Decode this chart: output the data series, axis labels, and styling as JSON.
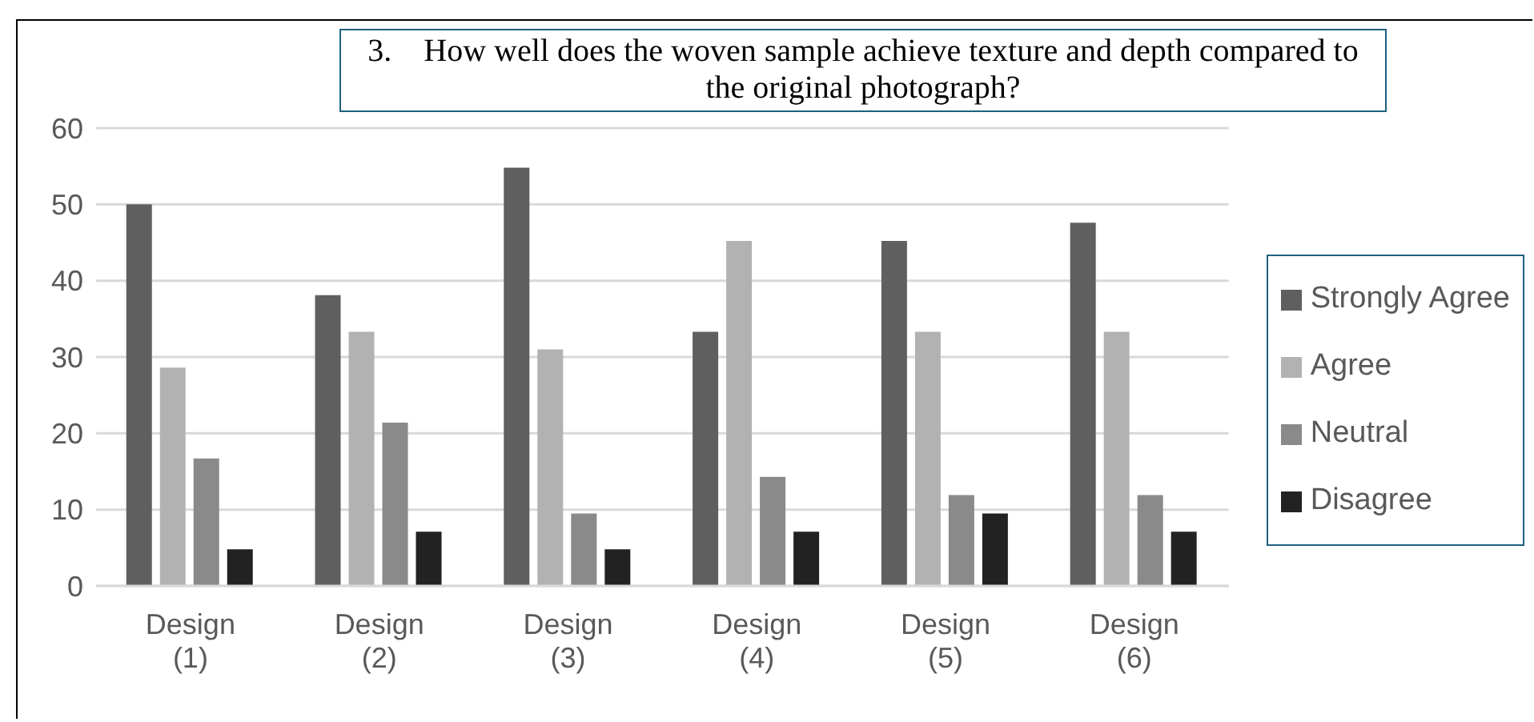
{
  "chart_data": {
    "type": "bar",
    "title": "3.    How well does the woven sample achieve texture and depth compared to the original photograph?",
    "categories": [
      "Design (1)",
      "Design (2)",
      "Design (3)",
      "Design (4)",
      "Design (5)",
      "Design (6)"
    ],
    "series": [
      {
        "name": "Strongly Agree",
        "color": "#5f5f5f",
        "values": [
          50,
          38.1,
          54.8,
          33.3,
          45.2,
          47.6
        ]
      },
      {
        "name": "Agree",
        "color": "#b2b2b2",
        "values": [
          28.6,
          33.3,
          31,
          45.2,
          33.3,
          33.3
        ]
      },
      {
        "name": "Neutral",
        "color": "#8a8a8a",
        "values": [
          16.7,
          21.4,
          9.5,
          14.3,
          11.9,
          11.9
        ]
      },
      {
        "name": "Disagree",
        "color": "#222222",
        "values": [
          4.8,
          7.1,
          4.8,
          7.1,
          9.5,
          7.1
        ]
      }
    ],
    "ylim": [
      0,
      60
    ],
    "yticks": [
      0,
      10,
      20,
      30,
      40,
      50,
      60
    ],
    "grid": "y",
    "legend": "right"
  }
}
